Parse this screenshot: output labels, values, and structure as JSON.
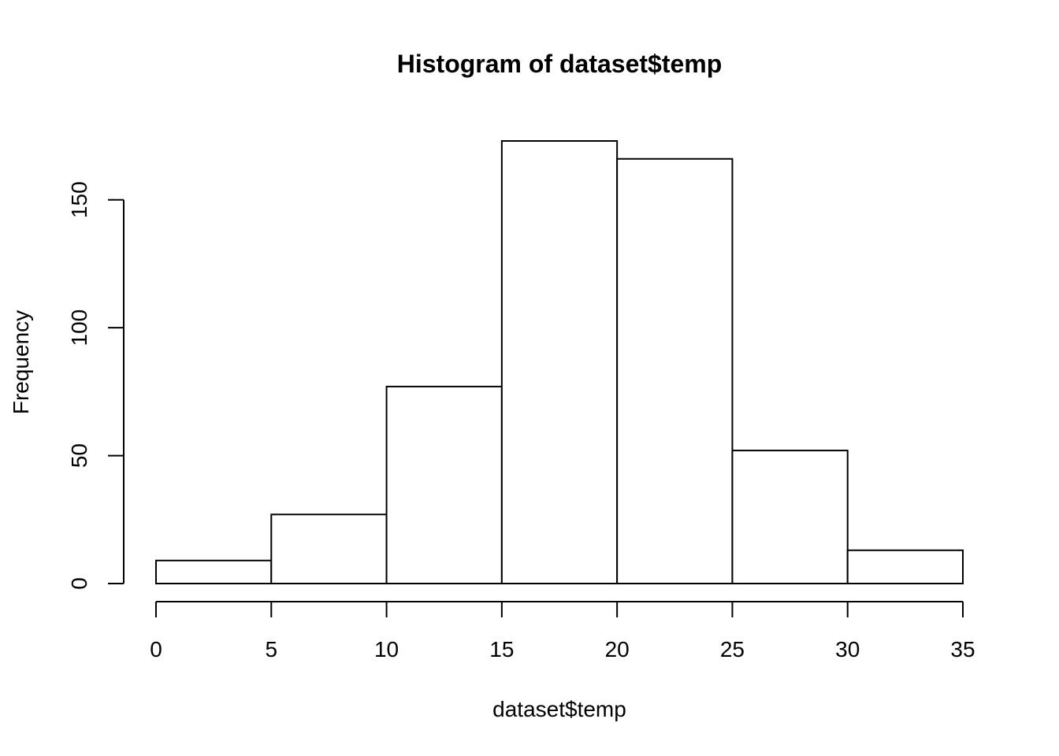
{
  "chart_data": {
    "type": "bar",
    "subtype": "histogram",
    "title": "Histogram of dataset$temp",
    "xlabel": "dataset$temp",
    "ylabel": "Frequency",
    "bins": [
      {
        "from": 0,
        "to": 5,
        "count": 9
      },
      {
        "from": 5,
        "to": 10,
        "count": 27
      },
      {
        "from": 10,
        "to": 15,
        "count": 77
      },
      {
        "from": 15,
        "to": 20,
        "count": 173
      },
      {
        "from": 20,
        "to": 25,
        "count": 166
      },
      {
        "from": 25,
        "to": 30,
        "count": 52
      },
      {
        "from": 30,
        "to": 35,
        "count": 13
      }
    ],
    "xlim": [
      0,
      35
    ],
    "ylim": [
      0,
      173
    ],
    "x_ticks": [
      0,
      5,
      10,
      15,
      20,
      25,
      30,
      35
    ],
    "x_tick_labels": [
      "0",
      "5",
      "10",
      "15",
      "20",
      "25",
      "30",
      "35"
    ],
    "y_ticks": [
      0,
      50,
      100,
      150
    ],
    "y_tick_labels": [
      "0",
      "50",
      "100",
      "150"
    ],
    "grid": false,
    "bar_fill": "#ffffff",
    "bar_stroke": "#000000"
  }
}
